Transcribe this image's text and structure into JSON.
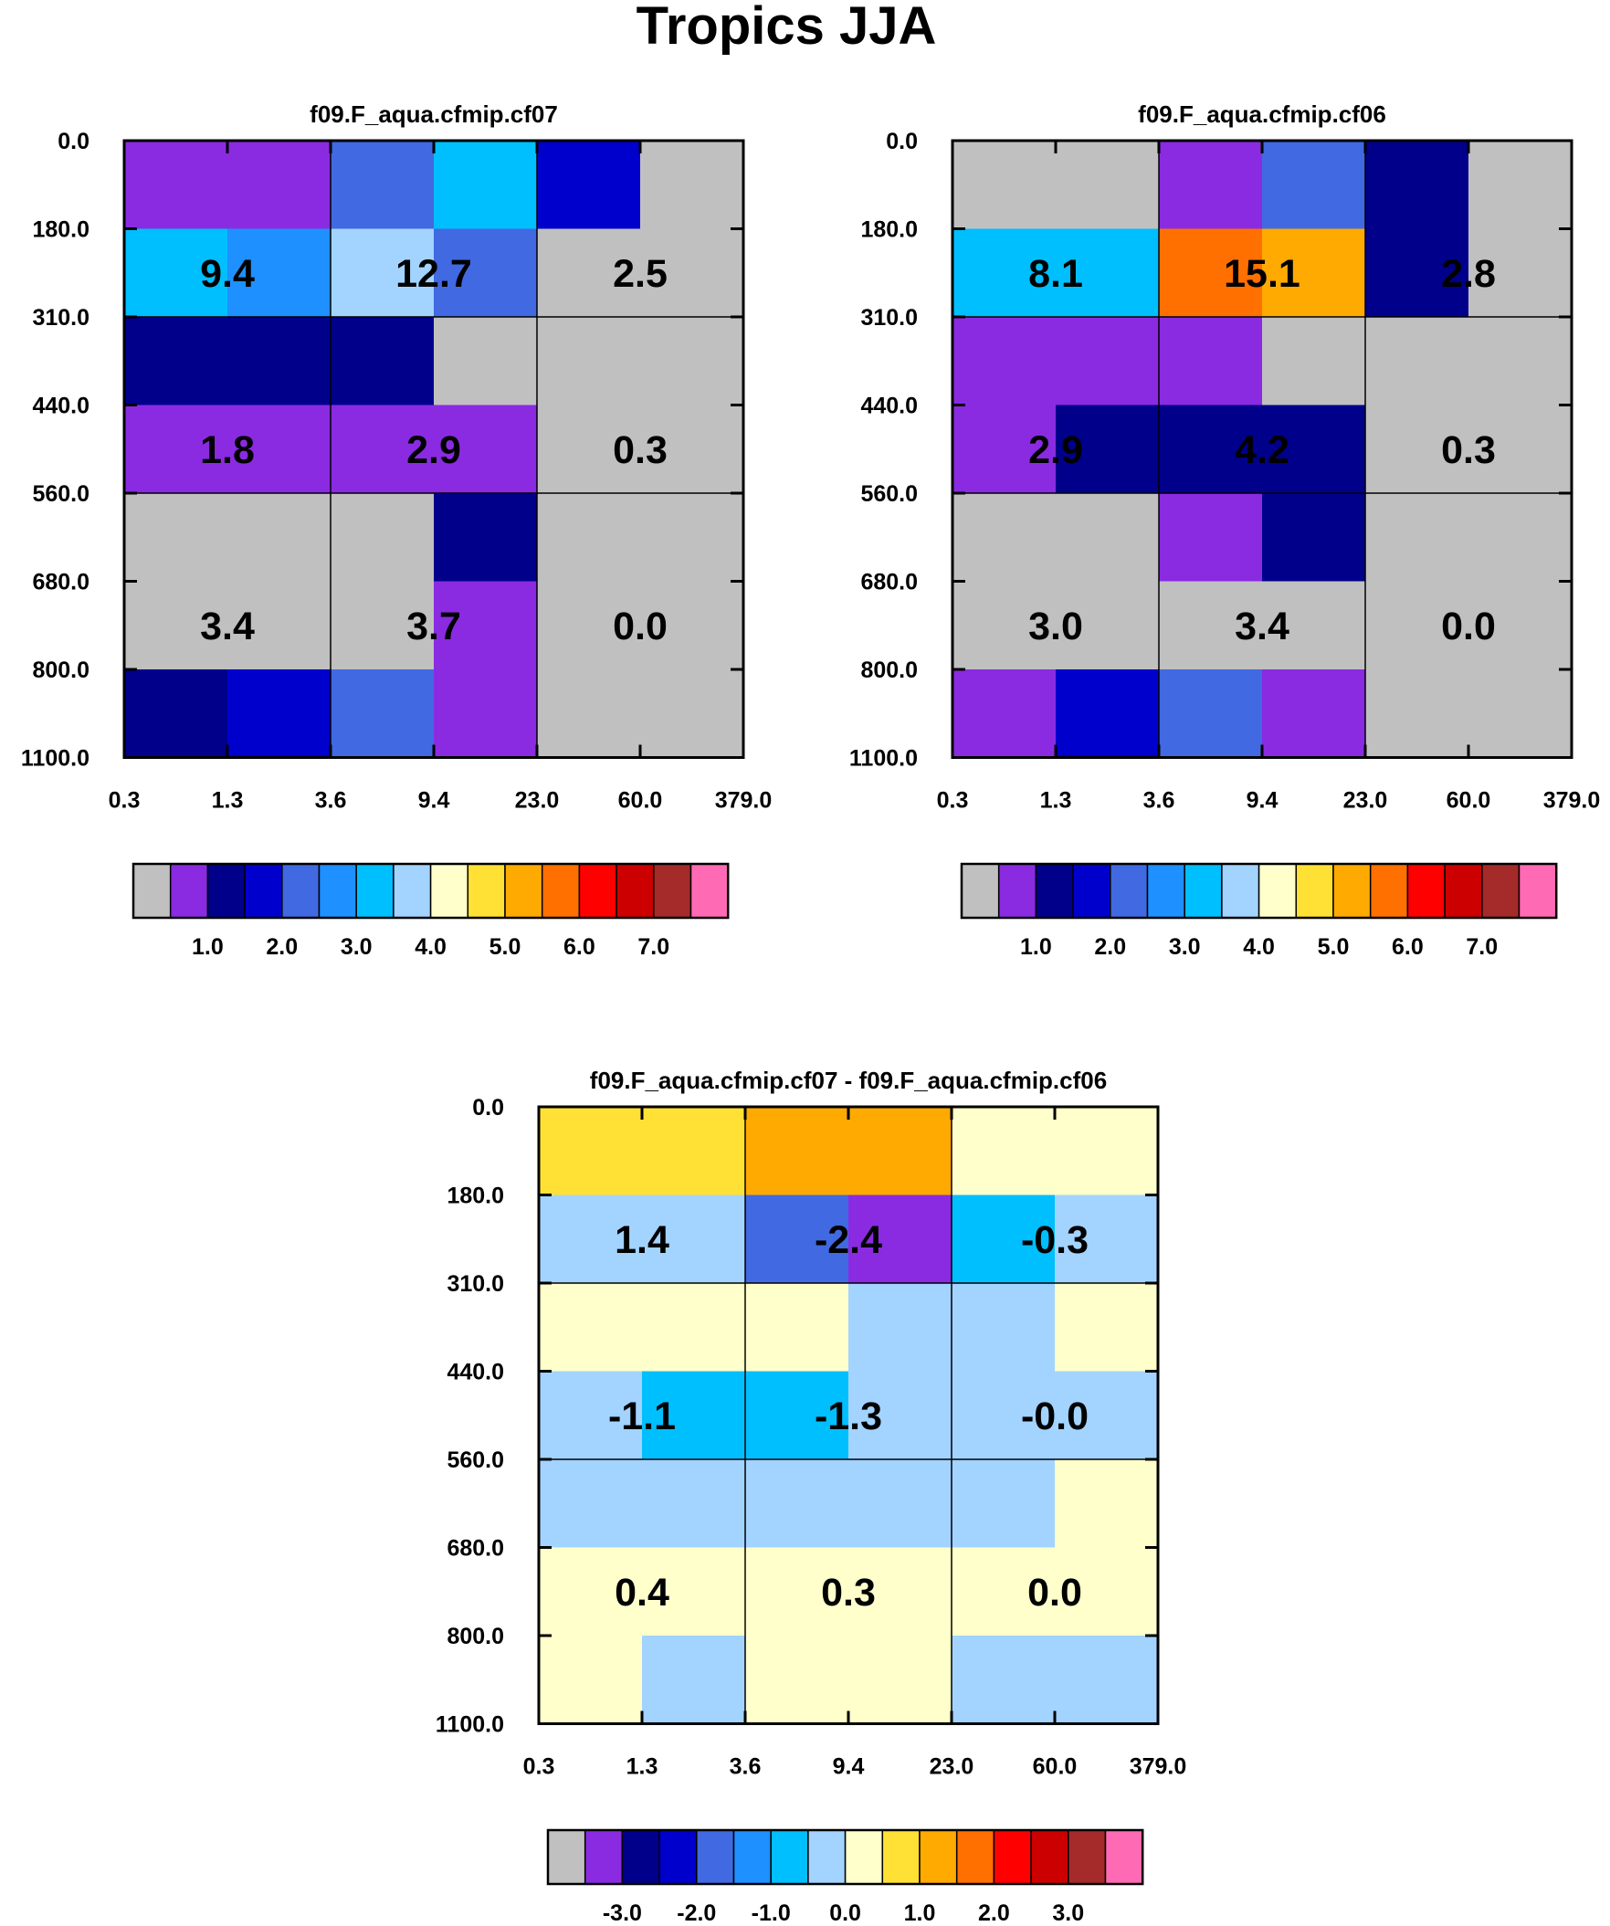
{
  "figure_title": "Tropics JJA",
  "palette": [
    "#c0c0c0",
    "#8a2be2",
    "#00008b",
    "#0000cd",
    "#4169e1",
    "#1e90ff",
    "#00bfff",
    "#a3d3ff",
    "#ffffcc",
    "#ffe135",
    "#ffaa00",
    "#ff7000",
    "#ff0000",
    "#cc0000",
    "#a52a2a",
    "#ff6ab4"
  ],
  "chart_data": [
    {
      "type": "heatmap",
      "title": "f09.F_aqua.cfmip.cf07",
      "x_ticks": [
        "0.3",
        "1.3",
        "3.6",
        "9.4",
        "23.0",
        "60.0",
        "379.0"
      ],
      "y_ticks": [
        "0.0",
        "180.0",
        "310.0",
        "440.0",
        "560.0",
        "680.0",
        "800.0",
        "1100.0"
      ],
      "cell_colors": [
        [
          1,
          1,
          4,
          6,
          3,
          0
        ],
        [
          6,
          5,
          7,
          4,
          0,
          0
        ],
        [
          2,
          2,
          2,
          0,
          0,
          0
        ],
        [
          1,
          1,
          1,
          1,
          0,
          0
        ],
        [
          0,
          0,
          0,
          2,
          0,
          0
        ],
        [
          0,
          0,
          0,
          1,
          0,
          0
        ],
        [
          2,
          3,
          4,
          1,
          0,
          0
        ]
      ],
      "block_values": [
        [
          "9.4",
          "12.7",
          "2.5"
        ],
        [
          "1.8",
          "2.9",
          "0.3"
        ],
        [
          "3.4",
          "3.7",
          "0.0"
        ]
      ],
      "colorbar_labels": [
        "1.0",
        "2.0",
        "3.0",
        "4.0",
        "5.0",
        "6.0",
        "7.0"
      ]
    },
    {
      "type": "heatmap",
      "title": "f09.F_aqua.cfmip.cf06",
      "x_ticks": [
        "0.3",
        "1.3",
        "3.6",
        "9.4",
        "23.0",
        "60.0",
        "379.0"
      ],
      "y_ticks": [
        "0.0",
        "180.0",
        "310.0",
        "440.0",
        "560.0",
        "680.0",
        "800.0",
        "1100.0"
      ],
      "cell_colors": [
        [
          0,
          0,
          1,
          4,
          2,
          0
        ],
        [
          6,
          6,
          11,
          10,
          2,
          0
        ],
        [
          1,
          1,
          1,
          0,
          0,
          0
        ],
        [
          1,
          2,
          2,
          2,
          0,
          0
        ],
        [
          0,
          0,
          1,
          2,
          0,
          0
        ],
        [
          0,
          0,
          0,
          0,
          0,
          0
        ],
        [
          1,
          3,
          4,
          1,
          0,
          0
        ]
      ],
      "block_values": [
        [
          "8.1",
          "15.1",
          "2.8"
        ],
        [
          "2.9",
          "4.2",
          "0.3"
        ],
        [
          "3.0",
          "3.4",
          "0.0"
        ]
      ],
      "colorbar_labels": [
        "1.0",
        "2.0",
        "3.0",
        "4.0",
        "5.0",
        "6.0",
        "7.0"
      ]
    },
    {
      "type": "heatmap",
      "title": "f09.F_aqua.cfmip.cf07 - f09.F_aqua.cfmip.cf06",
      "x_ticks": [
        "0.3",
        "1.3",
        "3.6",
        "9.4",
        "23.0",
        "60.0",
        "379.0"
      ],
      "y_ticks": [
        "0.0",
        "180.0",
        "310.0",
        "440.0",
        "560.0",
        "680.0",
        "800.0",
        "1100.0"
      ],
      "cell_colors": [
        [
          9,
          9,
          10,
          10,
          8,
          8
        ],
        [
          7,
          7,
          4,
          1,
          6,
          7
        ],
        [
          8,
          8,
          8,
          7,
          7,
          8
        ],
        [
          7,
          6,
          6,
          7,
          7,
          7
        ],
        [
          7,
          7,
          7,
          7,
          7,
          8
        ],
        [
          8,
          8,
          8,
          8,
          8,
          8
        ],
        [
          8,
          7,
          8,
          8,
          7,
          7
        ]
      ],
      "block_values": [
        [
          "1.4",
          "-2.4",
          "-0.3"
        ],
        [
          "-1.1",
          "-1.3",
          "-0.0"
        ],
        [
          "0.4",
          "0.3",
          "0.0"
        ]
      ],
      "colorbar_labels": [
        "-3.0",
        "-2.0",
        "-1.0",
        "0.0",
        "1.0",
        "2.0",
        "3.0"
      ]
    }
  ]
}
